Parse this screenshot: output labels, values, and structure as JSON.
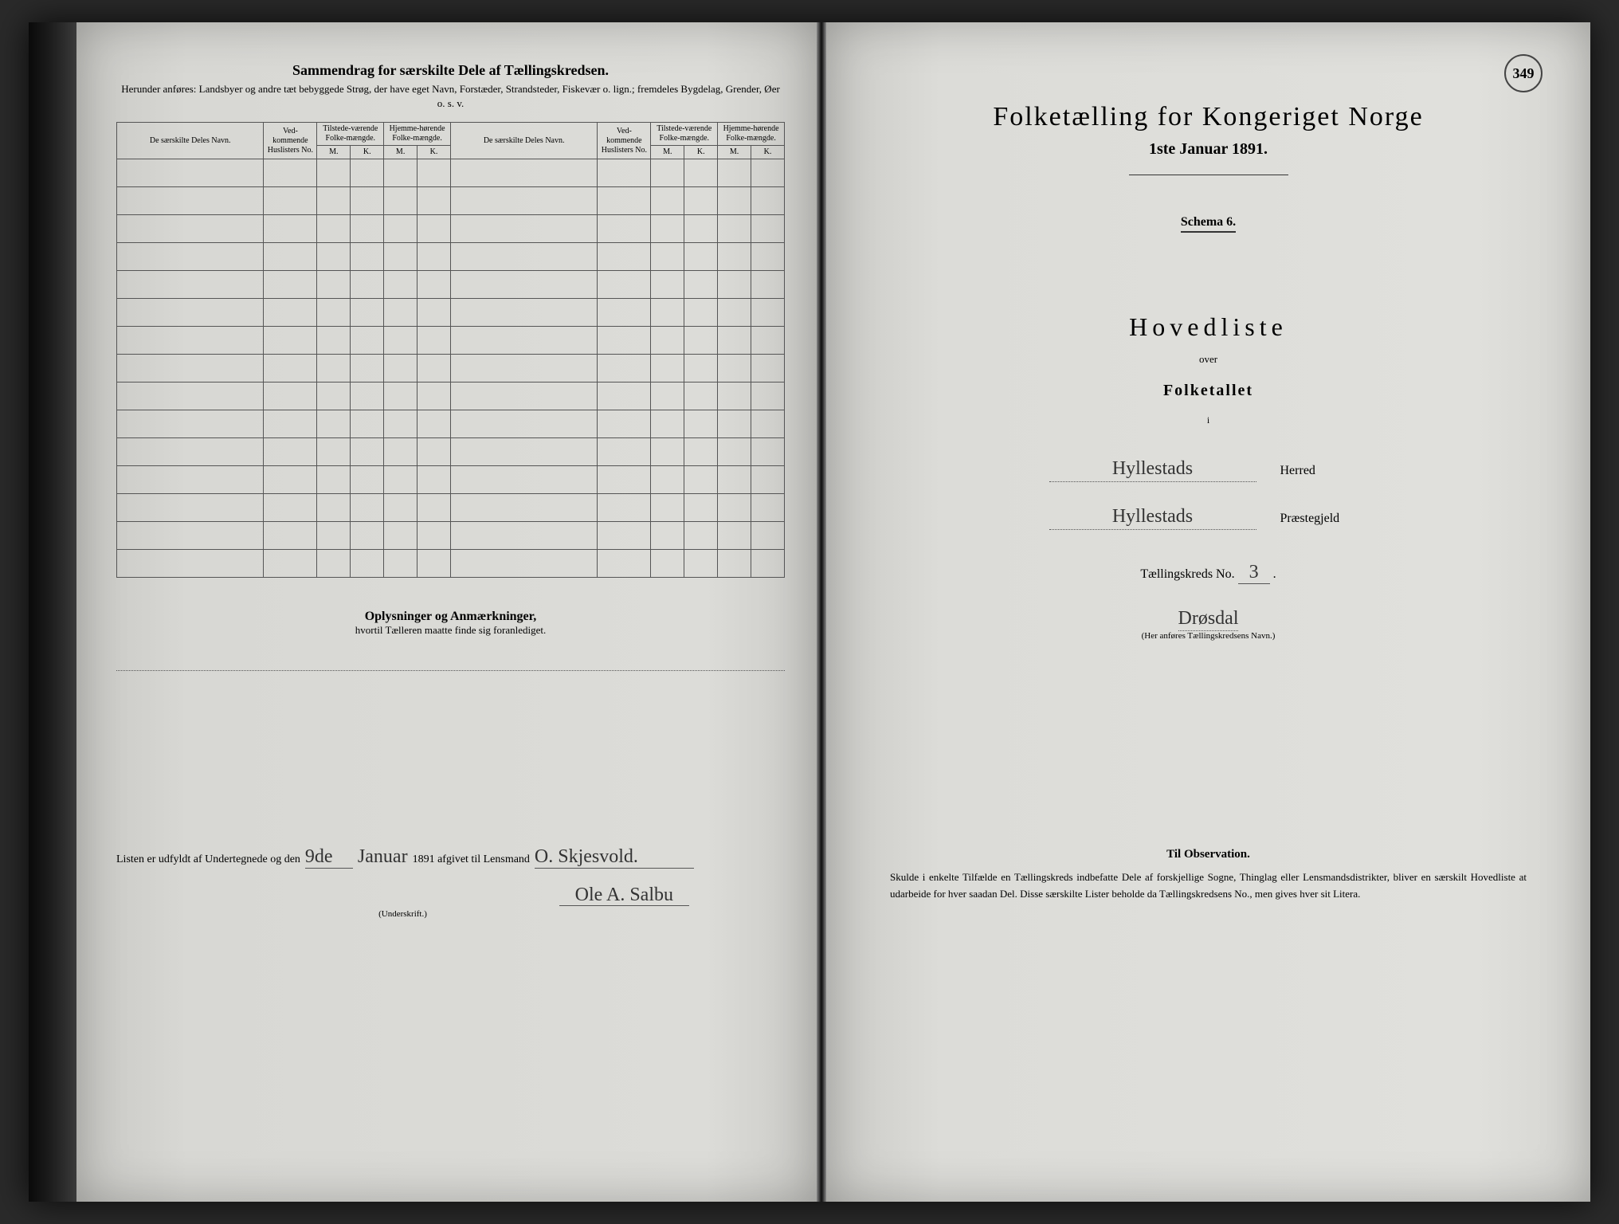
{
  "pageNumber": "349",
  "left": {
    "title": "Sammendrag for særskilte Dele af Tællingskredsen.",
    "subtitle": "Herunder anføres: Landsbyer og andre tæt bebyggede Strøg, der have eget Navn, Forstæder, Strandsteder, Fiskevær o. lign.; fremdeles Bygdelag, Grender, Øer o. s. v.",
    "headers": {
      "name": "De særskilte Deles Navn.",
      "no": "Ved-kommende Huslisters No.",
      "present": "Tilstede-værende Folke-mængde.",
      "resident": "Hjemme-hørende Folke-mængde.",
      "m": "M.",
      "k": "K."
    },
    "blankRows": 15,
    "remarksTitle": "Oplysninger og Anmærkninger,",
    "remarksSub": "hvortil Tælleren maatte finde sig foranlediget.",
    "sig": {
      "prefix": "Listen er udfyldt af Undertegnede og den",
      "day": "9de",
      "month": "Januar",
      "year": "1891 afgivet til Lensmand",
      "name1": "O. Skjesvold.",
      "name2": "Ole A. Salbu",
      "under": "(Underskrift.)"
    }
  },
  "right": {
    "mainTitle": "Folketælling for Kongeriget Norge",
    "date": "1ste Januar 1891.",
    "schema": "Schema 6.",
    "hovedliste": "Hovedliste",
    "over": "over",
    "folketallet": "Folketallet",
    "i": "i",
    "herred": {
      "value": "Hyllestads",
      "label": "Herred"
    },
    "praestegjeld": {
      "value": "Hyllestads",
      "label": "Præstegjeld"
    },
    "kredsLabel": "Tællingskreds No.",
    "kredsNo": "3",
    "kredsName": "Drøsdal",
    "kredsNote": "(Her anføres Tællingskredsens Navn.)",
    "obsTitle": "Til Observation.",
    "obsText": "Skulde i enkelte Tilfælde en Tællingskreds indbefatte Dele af forskjellige Sogne, Thinglag eller Lensmandsdistrikter, bliver en særskilt Hovedliste at udarbeide for hver saadan Del. Disse særskilte Lister beholde da Tællingskredsens No., men gives hver sit Litera."
  }
}
